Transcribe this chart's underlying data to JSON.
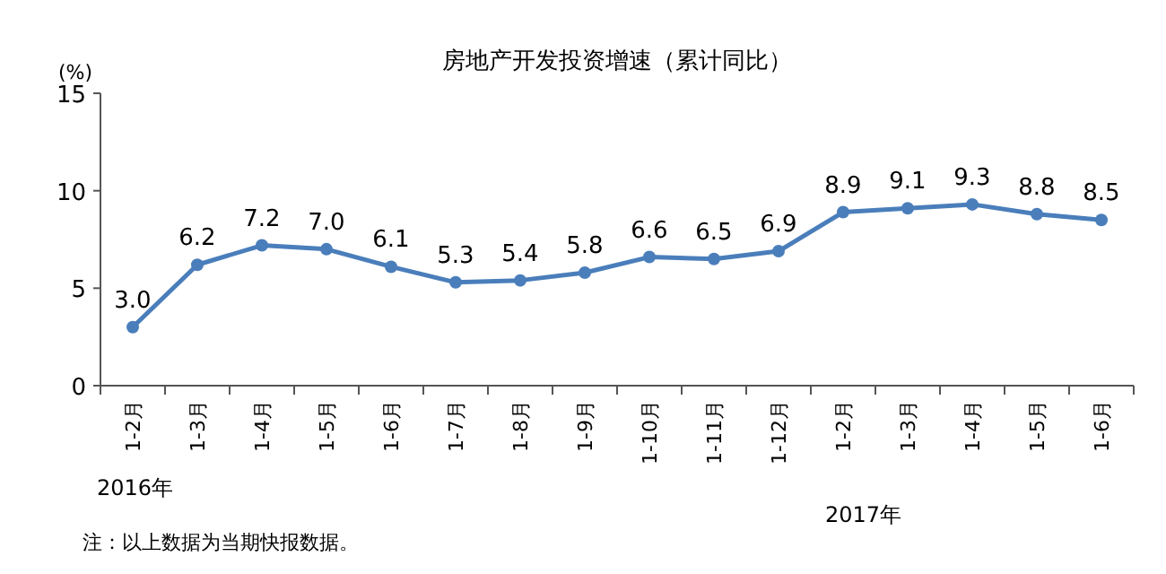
{
  "chart_data": {
    "type": "line",
    "title": "房地产开发投资增速（累计同比）",
    "ylabel": "(%)",
    "categories": [
      "1-2月",
      "1-3月",
      "1-4月",
      "1-5月",
      "1-6月",
      "1-7月",
      "1-8月",
      "1-9月",
      "1-10月",
      "1-11月",
      "1-12月",
      "1-2月",
      "1-3月",
      "1-4月",
      "1-5月",
      "1-6月"
    ],
    "series": [
      {
        "color": "#4a7ebb",
        "values": [
          3.0,
          6.2,
          7.2,
          7.0,
          6.1,
          5.3,
          5.4,
          5.8,
          6.6,
          6.5,
          6.9,
          8.9,
          9.1,
          9.3,
          8.8,
          8.5
        ],
        "value_labels": [
          "3.0",
          "6.2",
          "7.2",
          "7.0",
          "6.1",
          "5.3",
          "5.4",
          "5.8",
          "6.6",
          "6.5",
          "6.9",
          "8.9",
          "9.1",
          "9.3",
          "8.8",
          "8.5"
        ]
      }
    ],
    "ylim": [
      0,
      15
    ],
    "yticks": [
      0,
      5,
      10,
      15
    ],
    "marker": "circle",
    "grid": false,
    "annotations": [
      "2016年",
      "2017年",
      "注：以上数据为当期快报数据。"
    ]
  }
}
